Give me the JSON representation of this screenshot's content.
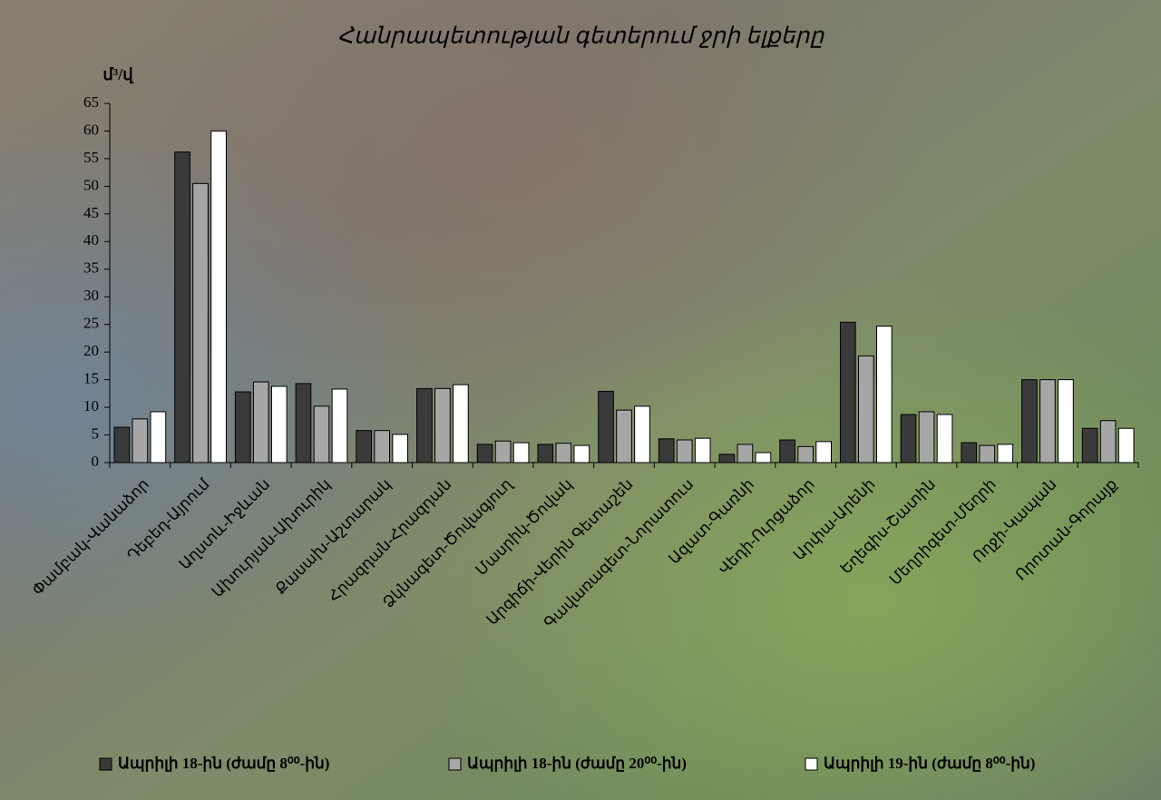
{
  "chart_data": {
    "type": "bar",
    "title": "Հանրապետության գետերում ջրի ելքերը",
    "y_label": "մ³/վ",
    "categories": [
      "Փամբակ-Վանաձոր",
      "Դեբեդ-Այրում",
      "Աղստև-Իջևան",
      "Ախուրյան-Ախուրիկ",
      "Քասախ-Աշտարակ",
      "Հրազդան-Հրազդան",
      "Ձկնագետ-Ծովագյուղ",
      "Մասրիկ-Ծովակ",
      "Արգիճի-Վերին Գետաշեն",
      "Գավառագետ-Նորատուս",
      "Ազատ-Գառնի",
      "Վեդի-Ուրցաձոր",
      "Արփա-Արենի",
      "Եղեգիս-Շատին",
      "Մեղրիգետ-Մեղրի",
      "Ողջի-Կապան",
      "Որոտան-Գորայք"
    ],
    "series": [
      {
        "name": "Ապրիլի 18-ին (ժամը 8⁰⁰-ին)",
        "color": "#3a3a3a",
        "values": [
          6.4,
          56.2,
          12.8,
          14.3,
          5.8,
          13.4,
          3.3,
          3.3,
          12.9,
          4.3,
          1.5,
          4.1,
          25.4,
          8.7,
          3.6,
          15,
          6.2
        ]
      },
      {
        "name": "Ապրիլի 18-ին (ժամը 20⁰⁰-ին)",
        "color": "#a6a6a6",
        "values": [
          7.9,
          50.5,
          14.6,
          10.2,
          5.8,
          13.4,
          3.9,
          3.5,
          9.5,
          4.1,
          3.3,
          2.9,
          19.3,
          9.2,
          3.1,
          15,
          7.6
        ]
      },
      {
        "name": "Ապրիլի 19-ին (ժամը 8⁰⁰-ին)",
        "color": "#ffffff",
        "values": [
          9.2,
          60,
          13.8,
          13.3,
          5.1,
          14.1,
          3.6,
          3.1,
          10.2,
          4.4,
          1.8,
          3.8,
          24.7,
          8.7,
          3.3,
          15,
          6.2
        ]
      }
    ],
    "ylim": [
      0,
      65
    ],
    "yticks": [
      0,
      5,
      10,
      15,
      20,
      25,
      30,
      35,
      40,
      45,
      50,
      55,
      60,
      65
    ],
    "grid": false,
    "legend": "bottom"
  }
}
